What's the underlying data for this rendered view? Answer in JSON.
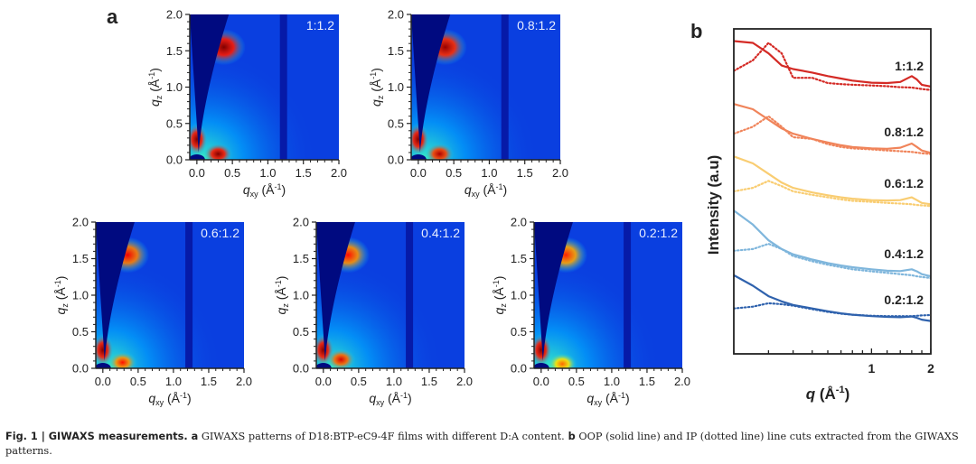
{
  "figure": {
    "panel_a_label": "a",
    "panel_b_label": "b"
  },
  "caption": {
    "fig_label": "Fig. 1 | ",
    "title": "GIWAXS measurements.",
    "a_label": " a",
    "a_text": " GIWAXS patterns of D18:BTP-eC9-4F films with different D:A content.",
    "b_label": " b",
    "b_text": " OOP (solid line) and IP (dotted line) line cuts extracted from the GIWAXS patterns."
  },
  "chart_data": [
    {
      "type": "heatmap",
      "title": "1:1.2",
      "xlabel": "q_xy (Å^-1)",
      "ylabel": "q_z (Å^-1)",
      "xlim": [
        -0.1,
        2.0
      ],
      "ylim": [
        0.0,
        2.0
      ],
      "xticks": [
        "0.0",
        "0.5",
        "1.0",
        "1.5",
        "2.0"
      ],
      "yticks": [
        "0.0",
        "0.5",
        "1.0",
        "1.5",
        "2.0"
      ],
      "peaks": [
        {
          "qxy": 0.38,
          "qz": 1.55,
          "intensity": 1.0
        },
        {
          "qxy": 0.0,
          "qz": 0.28,
          "intensity": 1.0
        },
        {
          "qxy": 0.3,
          "qz": 0.08,
          "intensity": 1.0
        }
      ],
      "detector_gap_qxy": 1.22
    },
    {
      "type": "heatmap",
      "title": "0.8:1.2",
      "xlabel": "q_xy (Å^-1)",
      "ylabel": "q_z (Å^-1)",
      "xlim": [
        -0.1,
        2.0
      ],
      "ylim": [
        0.0,
        2.0
      ],
      "xticks": [
        "0.0",
        "0.5",
        "1.0",
        "1.5",
        "2.0"
      ],
      "yticks": [
        "0.0",
        "0.5",
        "1.0",
        "1.5",
        "2.0"
      ],
      "peaks": [
        {
          "qxy": 0.38,
          "qz": 1.55,
          "intensity": 0.95
        },
        {
          "qxy": 0.0,
          "qz": 0.28,
          "intensity": 1.0
        },
        {
          "qxy": 0.3,
          "qz": 0.08,
          "intensity": 0.9
        }
      ],
      "detector_gap_qxy": 1.22
    },
    {
      "type": "heatmap",
      "title": "0.6:1.2",
      "xlabel": "q_xy (Å^-1)",
      "ylabel": "q_z (Å^-1)",
      "xlim": [
        -0.1,
        2.0
      ],
      "ylim": [
        0.0,
        2.0
      ],
      "xticks": [
        "0.0",
        "0.5",
        "1.0",
        "1.5",
        "2.0"
      ],
      "yticks": [
        "0.0",
        "0.5",
        "1.0",
        "1.5",
        "2.0"
      ],
      "peaks": [
        {
          "qxy": 0.35,
          "qz": 1.55,
          "intensity": 0.75
        },
        {
          "qxy": 0.0,
          "qz": 0.25,
          "intensity": 1.0
        },
        {
          "qxy": 0.28,
          "qz": 0.08,
          "intensity": 0.7
        }
      ],
      "detector_gap_qxy": 1.22
    },
    {
      "type": "heatmap",
      "title": "0.4:1.2",
      "xlabel": "q_xy (Å^-1)",
      "ylabel": "q_z (Å^-1)",
      "xlim": [
        -0.1,
        2.0
      ],
      "ylim": [
        0.0,
        2.0
      ],
      "xticks": [
        "0.0",
        "0.5",
        "1.0",
        "1.5",
        "2.0"
      ],
      "yticks": [
        "0.0",
        "0.5",
        "1.0",
        "1.5",
        "2.0"
      ],
      "peaks": [
        {
          "qxy": 0.35,
          "qz": 1.55,
          "intensity": 0.7
        },
        {
          "qxy": 0.0,
          "qz": 0.25,
          "intensity": 1.0
        },
        {
          "qxy": 0.25,
          "qz": 0.12,
          "intensity": 0.8
        }
      ],
      "detector_gap_qxy": 1.22
    },
    {
      "type": "heatmap",
      "title": "0.2:1.2",
      "xlabel": "q_xy (Å^-1)",
      "ylabel": "q_z (Å^-1)",
      "xlim": [
        -0.1,
        2.0
      ],
      "ylim": [
        0.0,
        2.0
      ],
      "xticks": [
        "0.0",
        "0.5",
        "1.0",
        "1.5",
        "2.0"
      ],
      "yticks": [
        "0.0",
        "0.5",
        "1.0",
        "1.5",
        "2.0"
      ],
      "peaks": [
        {
          "qxy": 0.35,
          "qz": 1.55,
          "intensity": 0.65
        },
        {
          "qxy": 0.0,
          "qz": 0.25,
          "intensity": 1.0
        },
        {
          "qxy": 0.3,
          "qz": 0.06,
          "intensity": 0.5
        }
      ],
      "detector_gap_qxy": 1.22
    },
    {
      "type": "line",
      "title": "",
      "xlabel": "q (Å^-1)",
      "ylabel": "Intensity (a.u)",
      "xscale": "log",
      "xlim": [
        0.2,
        2.0
      ],
      "xticks": [
        "1",
        "2"
      ],
      "yticks": [],
      "legend": "solid = OOP, dotted = IP",
      "x": [
        0.2,
        0.25,
        0.3,
        0.35,
        0.4,
        0.5,
        0.6,
        0.7,
        0.8,
        1.0,
        1.2,
        1.4,
        1.6,
        1.7,
        1.8,
        2.0
      ],
      "series": [
        {
          "name": "1:1.2 OOP",
          "label": "1:1.2",
          "color": "#d42a25",
          "style": "solid",
          "values": [
            9.25,
            9.2,
            8.9,
            8.55,
            8.45,
            8.35,
            8.25,
            8.18,
            8.12,
            8.06,
            8.05,
            8.08,
            8.25,
            8.15,
            8.0,
            7.95
          ]
        },
        {
          "name": "1:1.2 IP",
          "color": "#d42a25",
          "style": "dotted",
          "values": [
            8.4,
            8.7,
            9.2,
            8.9,
            8.2,
            8.2,
            8.05,
            8.02,
            8.0,
            7.98,
            7.96,
            7.93,
            7.92,
            7.9,
            7.88,
            7.85
          ]
        },
        {
          "name": "0.8:1.2 OOP",
          "label": "0.8:1.2",
          "color": "#f0845a",
          "style": "solid",
          "values": [
            7.45,
            7.3,
            7.0,
            6.75,
            6.6,
            6.45,
            6.35,
            6.27,
            6.22,
            6.18,
            6.17,
            6.2,
            6.32,
            6.22,
            6.12,
            6.05
          ]
        },
        {
          "name": "0.8:1.2 IP",
          "color": "#f0845a",
          "style": "dotted",
          "values": [
            6.6,
            6.8,
            7.1,
            6.8,
            6.5,
            6.45,
            6.3,
            6.22,
            6.18,
            6.15,
            6.12,
            6.1,
            6.08,
            6.06,
            6.04,
            6.02
          ]
        },
        {
          "name": "0.6:1.2 OOP",
          "label": "0.6:1.2",
          "color": "#f9cd72",
          "style": "solid",
          "values": [
            5.95,
            5.75,
            5.45,
            5.2,
            5.05,
            4.92,
            4.84,
            4.78,
            4.74,
            4.7,
            4.69,
            4.7,
            4.78,
            4.7,
            4.62,
            4.58
          ]
        },
        {
          "name": "0.6:1.2 IP",
          "color": "#f9cd72",
          "style": "dotted",
          "values": [
            4.95,
            5.05,
            5.25,
            5.1,
            4.95,
            4.85,
            4.78,
            4.72,
            4.68,
            4.65,
            4.62,
            4.6,
            4.58,
            4.56,
            4.55,
            4.53
          ]
        },
        {
          "name": "0.4:1.2 OOP",
          "label": "0.4:1.2",
          "color": "#7fb6dc",
          "style": "solid",
          "values": [
            4.4,
            4.0,
            3.55,
            3.3,
            3.15,
            3.0,
            2.9,
            2.83,
            2.78,
            2.72,
            2.68,
            2.67,
            2.72,
            2.66,
            2.58,
            2.52
          ]
        },
        {
          "name": "0.4:1.2 IP",
          "color": "#7fb6dc",
          "style": "dotted",
          "values": [
            3.25,
            3.3,
            3.45,
            3.3,
            3.1,
            2.95,
            2.85,
            2.78,
            2.72,
            2.66,
            2.62,
            2.58,
            2.55,
            2.52,
            2.5,
            2.47
          ]
        },
        {
          "name": "0.2:1.2 OOP",
          "label": "0.2:1.2",
          "color": "#2f62ad",
          "style": "solid",
          "values": [
            2.55,
            2.25,
            1.95,
            1.8,
            1.7,
            1.6,
            1.52,
            1.46,
            1.42,
            1.38,
            1.36,
            1.35,
            1.37,
            1.33,
            1.28,
            1.24
          ]
        },
        {
          "name": "0.2:1.2 IP",
          "color": "#2f62ad",
          "style": "dotted",
          "values": [
            1.6,
            1.65,
            1.75,
            1.72,
            1.68,
            1.58,
            1.5,
            1.45,
            1.42,
            1.39,
            1.38,
            1.38,
            1.38,
            1.39,
            1.4,
            1.41
          ]
        }
      ],
      "ylim": [
        0.3,
        9.6
      ]
    }
  ]
}
